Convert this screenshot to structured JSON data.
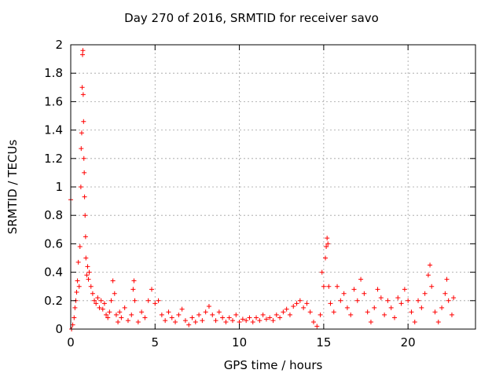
{
  "chart_data": {
    "type": "scatter",
    "title": "Day 270 of 2016, SRMTID for receiver savo",
    "xlabel": "GPS time / hours",
    "ylabel": "SRMTID / TECUs",
    "xlim": [
      0,
      24
    ],
    "ylim": [
      0,
      2
    ],
    "xticks": [
      0,
      5,
      10,
      15,
      20
    ],
    "yticks": [
      0,
      0.2,
      0.4,
      0.6,
      0.8,
      1,
      1.2,
      1.4,
      1.6,
      1.8,
      2
    ],
    "grid": true,
    "marker": "+",
    "color": "#ff0000",
    "series": [
      {
        "name": "SRMTID",
        "points": [
          [
            0.0,
            0.91
          ],
          [
            0.05,
            0.0
          ],
          [
            0.12,
            0.03
          ],
          [
            0.2,
            0.08
          ],
          [
            0.25,
            0.15
          ],
          [
            0.3,
            0.2
          ],
          [
            0.35,
            0.26
          ],
          [
            0.4,
            0.34
          ],
          [
            0.45,
            0.47
          ],
          [
            0.5,
            0.3
          ],
          [
            0.55,
            0.58
          ],
          [
            0.6,
            1.0
          ],
          [
            0.62,
            1.27
          ],
          [
            0.65,
            1.38
          ],
          [
            0.68,
            1.7
          ],
          [
            0.7,
            1.93
          ],
          [
            0.72,
            1.96
          ],
          [
            0.74,
            1.65
          ],
          [
            0.76,
            1.46
          ],
          [
            0.78,
            1.2
          ],
          [
            0.8,
            1.1
          ],
          [
            0.82,
            0.93
          ],
          [
            0.85,
            0.8
          ],
          [
            0.88,
            0.65
          ],
          [
            0.9,
            0.5
          ],
          [
            0.95,
            0.38
          ],
          [
            1.0,
            0.44
          ],
          [
            1.05,
            0.35
          ],
          [
            1.1,
            0.4
          ],
          [
            1.2,
            0.3
          ],
          [
            1.3,
            0.25
          ],
          [
            1.4,
            0.2
          ],
          [
            1.5,
            0.18
          ],
          [
            1.6,
            0.22
          ],
          [
            1.7,
            0.15
          ],
          [
            1.8,
            0.2
          ],
          [
            1.9,
            0.14
          ],
          [
            2.0,
            0.18
          ],
          [
            2.1,
            0.1
          ],
          [
            2.2,
            0.08
          ],
          [
            2.3,
            0.12
          ],
          [
            2.4,
            0.2
          ],
          [
            2.5,
            0.34
          ],
          [
            2.6,
            0.25
          ],
          [
            2.7,
            0.1
          ],
          [
            2.8,
            0.05
          ],
          [
            2.9,
            0.12
          ],
          [
            3.0,
            0.08
          ],
          [
            3.2,
            0.15
          ],
          [
            3.4,
            0.06
          ],
          [
            3.6,
            0.1
          ],
          [
            3.7,
            0.28
          ],
          [
            3.75,
            0.34
          ],
          [
            3.8,
            0.2
          ],
          [
            4.0,
            0.05
          ],
          [
            4.2,
            0.12
          ],
          [
            4.4,
            0.08
          ],
          [
            4.6,
            0.2
          ],
          [
            4.8,
            0.28
          ],
          [
            5.0,
            0.18
          ],
          [
            5.2,
            0.2
          ],
          [
            5.4,
            0.1
          ],
          [
            5.6,
            0.06
          ],
          [
            5.8,
            0.12
          ],
          [
            6.0,
            0.08
          ],
          [
            6.2,
            0.05
          ],
          [
            6.4,
            0.1
          ],
          [
            6.6,
            0.14
          ],
          [
            6.8,
            0.06
          ],
          [
            7.0,
            0.03
          ],
          [
            7.2,
            0.08
          ],
          [
            7.4,
            0.05
          ],
          [
            7.6,
            0.1
          ],
          [
            7.8,
            0.06
          ],
          [
            8.0,
            0.12
          ],
          [
            8.2,
            0.16
          ],
          [
            8.4,
            0.1
          ],
          [
            8.6,
            0.06
          ],
          [
            8.8,
            0.12
          ],
          [
            9.0,
            0.08
          ],
          [
            9.2,
            0.05
          ],
          [
            9.4,
            0.08
          ],
          [
            9.6,
            0.06
          ],
          [
            9.8,
            0.1
          ],
          [
            10.0,
            0.05
          ],
          [
            10.2,
            0.07
          ],
          [
            10.4,
            0.06
          ],
          [
            10.6,
            0.08
          ],
          [
            10.8,
            0.05
          ],
          [
            11.0,
            0.08
          ],
          [
            11.2,
            0.06
          ],
          [
            11.4,
            0.1
          ],
          [
            11.6,
            0.07
          ],
          [
            11.8,
            0.08
          ],
          [
            12.0,
            0.06
          ],
          [
            12.2,
            0.1
          ],
          [
            12.4,
            0.08
          ],
          [
            12.6,
            0.12
          ],
          [
            12.8,
            0.14
          ],
          [
            13.0,
            0.1
          ],
          [
            13.2,
            0.16
          ],
          [
            13.4,
            0.18
          ],
          [
            13.6,
            0.2
          ],
          [
            13.8,
            0.15
          ],
          [
            14.0,
            0.18
          ],
          [
            14.2,
            0.12
          ],
          [
            14.4,
            0.05
          ],
          [
            14.6,
            0.02
          ],
          [
            14.8,
            0.1
          ],
          [
            14.9,
            0.4
          ],
          [
            15.0,
            0.3
          ],
          [
            15.1,
            0.5
          ],
          [
            15.15,
            0.58
          ],
          [
            15.2,
            0.64
          ],
          [
            15.25,
            0.6
          ],
          [
            15.3,
            0.3
          ],
          [
            15.4,
            0.18
          ],
          [
            15.6,
            0.12
          ],
          [
            15.8,
            0.3
          ],
          [
            16.0,
            0.2
          ],
          [
            16.2,
            0.25
          ],
          [
            16.4,
            0.15
          ],
          [
            16.6,
            0.1
          ],
          [
            16.8,
            0.28
          ],
          [
            17.0,
            0.2
          ],
          [
            17.2,
            0.35
          ],
          [
            17.4,
            0.25
          ],
          [
            17.6,
            0.12
          ],
          [
            17.8,
            0.05
          ],
          [
            18.0,
            0.15
          ],
          [
            18.2,
            0.28
          ],
          [
            18.4,
            0.22
          ],
          [
            18.6,
            0.1
          ],
          [
            18.8,
            0.2
          ],
          [
            19.0,
            0.15
          ],
          [
            19.2,
            0.08
          ],
          [
            19.4,
            0.22
          ],
          [
            19.6,
            0.18
          ],
          [
            19.8,
            0.28
          ],
          [
            20.0,
            0.2
          ],
          [
            20.2,
            0.12
          ],
          [
            20.4,
            0.05
          ],
          [
            20.6,
            0.2
          ],
          [
            20.8,
            0.15
          ],
          [
            21.0,
            0.25
          ],
          [
            21.2,
            0.38
          ],
          [
            21.3,
            0.45
          ],
          [
            21.4,
            0.3
          ],
          [
            21.6,
            0.12
          ],
          [
            21.8,
            0.05
          ],
          [
            22.0,
            0.15
          ],
          [
            22.2,
            0.25
          ],
          [
            22.3,
            0.35
          ],
          [
            22.4,
            0.2
          ],
          [
            22.6,
            0.1
          ],
          [
            22.7,
            0.22
          ]
        ]
      }
    ]
  }
}
